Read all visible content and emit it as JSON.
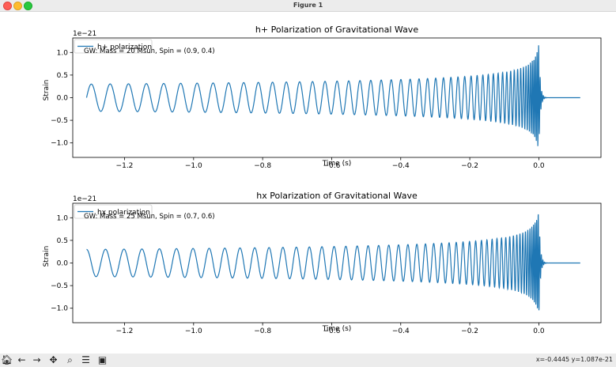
{
  "window": {
    "title": "Figure 1"
  },
  "toolbar": {
    "icons": [
      "home-icon",
      "back-icon",
      "forward-icon",
      "pan-icon",
      "zoom-icon",
      "configure-icon",
      "save-icon"
    ],
    "coord_readout": "x=-0.4445 y=1.087e-21"
  },
  "colors": {
    "line": "#1f77b4",
    "legend_border": "#cccccc"
  },
  "chart_data": [
    {
      "type": "line",
      "title": "h+ Polarization of Gravitational Wave",
      "xlabel": "Time (s)",
      "ylabel": "Strain",
      "y_offset_label": "1e−21",
      "xlim": [
        -1.35,
        0.18
      ],
      "ylim": [
        -1.32,
        1.32
      ],
      "xticks": [
        -1.2,
        -1.0,
        -0.8,
        -0.6,
        -0.4,
        -0.2,
        0.0
      ],
      "xtick_labels": [
        "−1.2",
        "−1.0",
        "−0.8",
        "−0.6",
        "−0.4",
        "−0.2",
        "0.0"
      ],
      "yticks": [
        -1.0,
        -0.5,
        0.0,
        0.5,
        1.0
      ],
      "ytick_labels": [
        "−1.0",
        "−0.5",
        "0.0",
        "0.5",
        "1.0"
      ],
      "legend_loc": "upper-left",
      "series": [
        {
          "name": "h+ polarization",
          "waveform": {
            "t_start": -1.31,
            "t_merger": 0.0,
            "t_end": 0.12,
            "amp_start": 0.3,
            "amp_peak": 1.2,
            "freq_start": 18,
            "freq_merger": 220,
            "phase": 0.0
          }
        }
      ],
      "annotation": "GW: Mass = 20 Msun, Spin = (0.9, 0.4)"
    },
    {
      "type": "line",
      "title": "hx Polarization of Gravitational Wave",
      "xlabel": "Time (s)",
      "ylabel": "Strain",
      "y_offset_label": "1e−21",
      "xlim": [
        -1.35,
        0.18
      ],
      "ylim": [
        -1.32,
        1.32
      ],
      "xticks": [
        -1.2,
        -1.0,
        -0.8,
        -0.6,
        -0.4,
        -0.2,
        0.0
      ],
      "xtick_labels": [
        "−1.2",
        "−1.0",
        "−0.8",
        "−0.6",
        "−0.4",
        "−0.2",
        "0.0"
      ],
      "yticks": [
        -1.0,
        -0.5,
        0.0,
        0.5,
        1.0
      ],
      "ytick_labels": [
        "−1.0",
        "−0.5",
        "0.0",
        "0.5",
        "1.0"
      ],
      "legend_loc": "upper-left",
      "series": [
        {
          "name": "hx polarization",
          "waveform": {
            "t_start": -1.31,
            "t_merger": 0.0,
            "t_end": 0.12,
            "amp_start": 0.3,
            "amp_peak": 1.2,
            "freq_start": 18,
            "freq_merger": 220,
            "phase": 1.5708
          }
        }
      ],
      "annotation": "GW: Mass = 25 Msun, Spin = (0.7, 0.6)"
    }
  ]
}
